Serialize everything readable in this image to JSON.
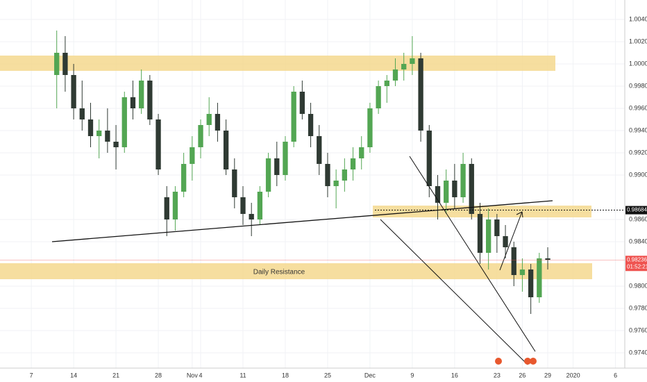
{
  "chart_data": {
    "type": "candlestick",
    "up_color": "#53a653",
    "down_color": "#2f3a33",
    "open": [
      0.999,
      1.001,
      0.999,
      0.996,
      0.995,
      0.9935,
      0.994,
      0.993,
      0.9925,
      0.997,
      0.996,
      0.9985,
      0.995,
      0.988,
      0.986,
      0.9885,
      0.991,
      0.9925,
      0.9945,
      0.9955,
      0.994,
      0.9905,
      0.988,
      0.9865,
      0.986,
      0.9885,
      0.9915,
      0.99,
      0.993,
      0.9975,
      0.9955,
      0.9935,
      0.991,
      0.989,
      0.9895,
      0.9905,
      0.9915,
      0.9925,
      0.996,
      0.998,
      0.9985,
      0.9995,
      1.0,
      1.0005,
      0.994,
      0.989,
      0.9875,
      0.9895,
      0.988,
      0.991,
      0.9865,
      0.983,
      0.986,
      0.9845,
      0.9835,
      0.981,
      0.9815,
      0.979,
      0.9825
    ],
    "high": [
      1.003,
      1.0025,
      1.0,
      0.9985,
      0.9965,
      0.995,
      0.996,
      0.9945,
      0.9975,
      0.9985,
      0.9995,
      0.999,
      0.9955,
      0.989,
      0.989,
      0.992,
      0.9935,
      0.995,
      0.997,
      0.9965,
      0.995,
      0.9915,
      0.989,
      0.9875,
      0.989,
      0.992,
      0.993,
      0.9935,
      0.998,
      0.9985,
      0.9965,
      0.9945,
      0.992,
      0.9905,
      0.9915,
      0.9925,
      0.9935,
      0.9965,
      0.9985,
      0.999,
      1.0005,
      1.001,
      1.0025,
      1.001,
      0.9945,
      0.99,
      0.9905,
      0.991,
      0.992,
      0.9915,
      0.9875,
      0.987,
      0.9865,
      0.9855,
      0.984,
      0.9825,
      0.982,
      0.983,
      0.9835
    ],
    "low": [
      0.996,
      0.9975,
      0.995,
      0.994,
      0.9925,
      0.9915,
      0.992,
      0.9905,
      0.992,
      0.995,
      0.9955,
      0.9945,
      0.99,
      0.9845,
      0.985,
      0.988,
      0.9895,
      0.9915,
      0.9935,
      0.993,
      0.99,
      0.987,
      0.9855,
      0.9845,
      0.9855,
      0.988,
      0.989,
      0.9895,
      0.9925,
      0.995,
      0.9925,
      0.99,
      0.988,
      0.987,
      0.9885,
      0.9895,
      0.9905,
      0.992,
      0.9955,
      0.9965,
      0.998,
      0.9985,
      0.999,
      0.993,
      0.988,
      0.986,
      0.9865,
      0.987,
      0.9875,
      0.986,
      0.982,
      0.9815,
      0.983,
      0.9825,
      0.98,
      0.9795,
      0.9775,
      0.9785,
      0.9815
    ],
    "close": [
      1.001,
      0.999,
      0.996,
      0.995,
      0.9935,
      0.994,
      0.993,
      0.9925,
      0.997,
      0.996,
      0.9985,
      0.995,
      0.9905,
      0.986,
      0.9885,
      0.991,
      0.9925,
      0.9945,
      0.9955,
      0.994,
      0.9905,
      0.988,
      0.9865,
      0.986,
      0.9885,
      0.9915,
      0.99,
      0.993,
      0.9975,
      0.9955,
      0.9935,
      0.991,
      0.989,
      0.9895,
      0.9905,
      0.9915,
      0.9925,
      0.996,
      0.998,
      0.9985,
      0.9995,
      1.0,
      1.0005,
      0.994,
      0.989,
      0.9875,
      0.9895,
      0.988,
      0.991,
      0.9865,
      0.983,
      0.986,
      0.9845,
      0.9835,
      0.981,
      0.9815,
      0.979,
      0.9825,
      0.98236
    ],
    "xlim": [
      -6.7,
      67.1
    ],
    "ylim": [
      0.972625,
      1.00575
    ],
    "xticks": [
      {
        "value": -3,
        "label": "7"
      },
      {
        "value": 2,
        "label": "14"
      },
      {
        "value": 7,
        "label": "21"
      },
      {
        "value": 12,
        "label": "28"
      },
      {
        "value": 16,
        "label": "Nov"
      },
      {
        "value": 17,
        "label": "4"
      },
      {
        "value": 22,
        "label": "11"
      },
      {
        "value": 27,
        "label": "18"
      },
      {
        "value": 32,
        "label": "25"
      },
      {
        "value": 37,
        "label": "Dec"
      },
      {
        "value": 42,
        "label": "9"
      },
      {
        "value": 47,
        "label": "16"
      },
      {
        "value": 52,
        "label": "23"
      },
      {
        "value": 55,
        "label": "26"
      },
      {
        "value": 58,
        "label": "29"
      },
      {
        "value": 61,
        "label": "2020"
      },
      {
        "value": 66,
        "label": "6"
      }
    ],
    "yticks": [
      {
        "value": 1.004,
        "label": "1.00400"
      },
      {
        "value": 1.002,
        "label": "1.00200"
      },
      {
        "value": 1.0,
        "label": "1.00000"
      },
      {
        "value": 0.998,
        "label": "0.99800"
      },
      {
        "value": 0.996,
        "label": "0.99600"
      },
      {
        "value": 0.994,
        "label": "0.99400"
      },
      {
        "value": 0.992,
        "label": "0.99200"
      },
      {
        "value": 0.99,
        "label": "0.99000"
      },
      {
        "value": 0.986,
        "label": "0.98600"
      },
      {
        "value": 0.984,
        "label": "0.98400"
      },
      {
        "value": 0.98,
        "label": "0.98000"
      },
      {
        "value": 0.978,
        "label": "0.97800"
      },
      {
        "value": 0.976,
        "label": "0.97600"
      },
      {
        "value": 0.974,
        "label": "0.97400"
      }
    ],
    "target_price": 0.98684,
    "last_price": 0.98236,
    "countdown": "01:52:21",
    "annotation": "Daily Resistance"
  }
}
